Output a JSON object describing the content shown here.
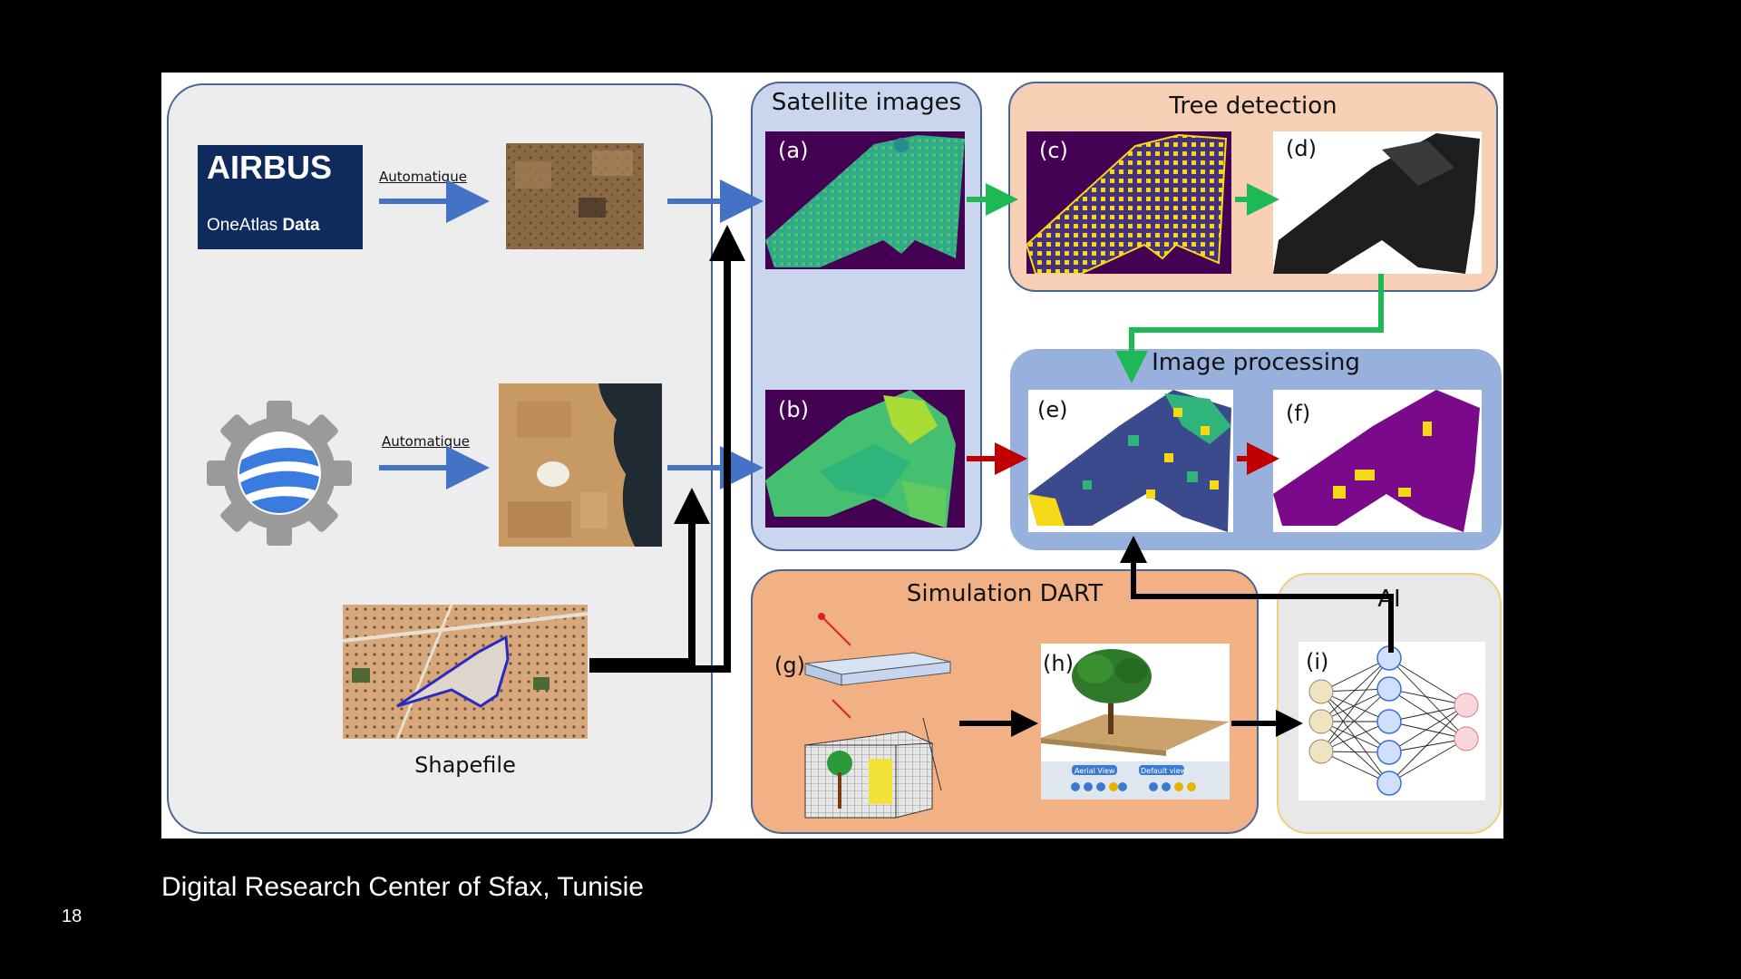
{
  "sources": {
    "airbus_logo": "AIRBUS",
    "airbus_sub_1": "OneAtlas ",
    "airbus_sub_2": "Data",
    "auto_label_1": "Automatique",
    "auto_label_2": "Automatique",
    "shapefile_label": "Shapefile",
    "gee_icon": "google-earth-engine-icon"
  },
  "panels": {
    "satellite_title": "Satellite images",
    "tree_title": "Tree detection",
    "processing_title": "Image processing",
    "dart_title": "Simulation DART",
    "ai_title": "AI"
  },
  "labels": {
    "a": "(a)",
    "b": "(b)",
    "c": "(c)",
    "d": "(d)",
    "e": "(e)",
    "f": "(f)",
    "g": "(g)",
    "h": "(h)",
    "i": "(i)"
  },
  "dart_ui": {
    "aerial_view": "Aerial View",
    "default_view": "Default view"
  },
  "footer": {
    "caption": "Digital Research Center of Sfax, Tunisie",
    "slide_number": "18"
  },
  "colors": {
    "airbus_bg": "#0f2a5c",
    "satellite_panel": "#c9d6ee",
    "tree_panel": "#f6cfb4",
    "processing_panel": "#97b0dc",
    "dart_panel": "#f2b085",
    "ai_panel": "#e8e8e8",
    "source_panel": "#ededed",
    "blue_arrow": "#4472c4",
    "green_arrow": "#1db954",
    "red_arrow": "#c00000",
    "viridis_bg": "#440154",
    "field_purple": "#7a0a8a",
    "field_yellow": "#f5d816"
  }
}
